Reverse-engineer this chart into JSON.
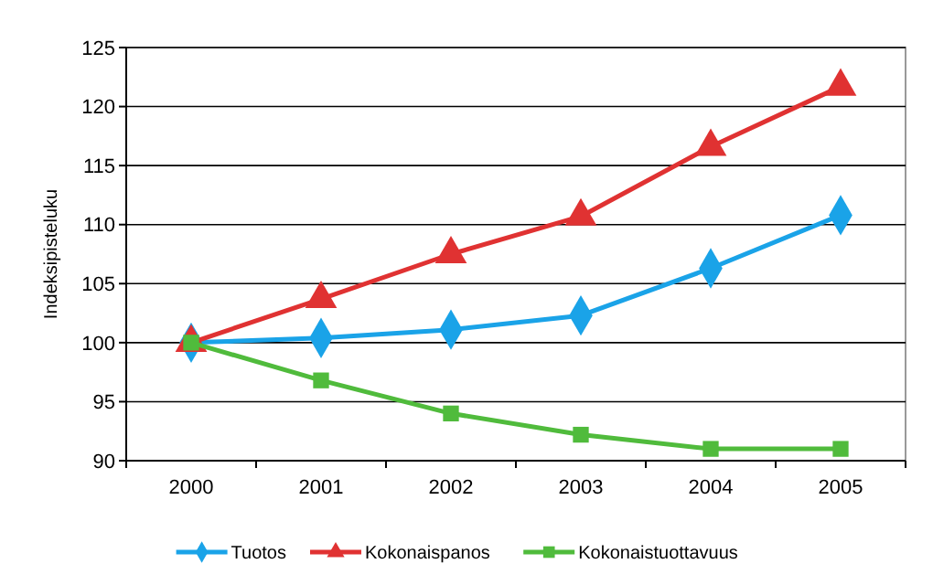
{
  "chart_data": {
    "type": "line",
    "ylabel": "Indeksipisteluku",
    "categories": [
      "2000",
      "2001",
      "2002",
      "2003",
      "2004",
      "2005"
    ],
    "ylim": [
      90,
      125
    ],
    "yticks": [
      90,
      95,
      100,
      105,
      110,
      115,
      120,
      125
    ],
    "grid": "y",
    "legend": "bottom",
    "series": [
      {
        "name": "Tuotos",
        "color": "#1aa3e8",
        "marker": "diamond",
        "values": [
          100,
          100.4,
          101.1,
          102.3,
          106.3,
          110.8
        ]
      },
      {
        "name": "Kokonaispanos",
        "color": "#e03232",
        "marker": "triangle",
        "values": [
          100,
          103.7,
          107.5,
          110.7,
          116.6,
          121.7
        ]
      },
      {
        "name": "Kokonaistuottavuus",
        "color": "#50bb3c",
        "marker": "square",
        "values": [
          100,
          96.8,
          94.0,
          92.2,
          91.0,
          91.0
        ]
      }
    ]
  }
}
